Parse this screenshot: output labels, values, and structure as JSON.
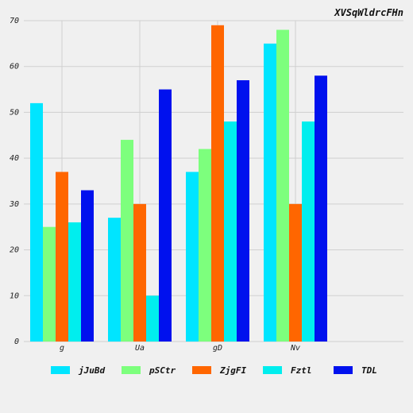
{
  "chart_data": {
    "type": "bar",
    "title": "XVSqWldrcFHn",
    "xlabel": "",
    "ylabel": "",
    "categories": [
      "g",
      "Ua",
      "gD",
      "Nv"
    ],
    "ylim": [
      0,
      70
    ],
    "yticks": [
      0,
      10,
      20,
      30,
      40,
      50,
      60,
      70
    ],
    "grid": true,
    "legend_position": "bottom",
    "series": [
      {
        "name": "jJuBd",
        "color": "#00e5ff",
        "values": [
          52,
          27,
          37,
          65
        ]
      },
      {
        "name": "pSCtr",
        "color": "#7dff7d",
        "values": [
          25,
          44,
          42,
          68
        ]
      },
      {
        "name": "ZjgFI",
        "color": "#ff6600",
        "values": [
          37,
          30,
          69,
          30
        ]
      },
      {
        "name": "Fztl",
        "color": "#00eeee",
        "values": [
          26,
          10,
          48,
          48
        ]
      },
      {
        "name": "TDL",
        "color": "#0011ee",
        "values": [
          33,
          55,
          57,
          58
        ]
      }
    ]
  }
}
